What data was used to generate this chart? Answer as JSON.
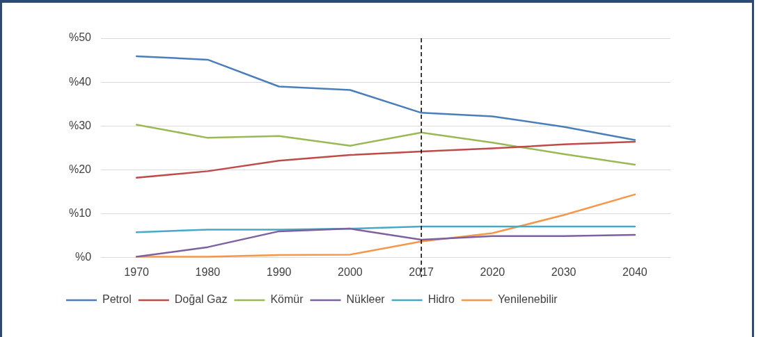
{
  "chart_data": {
    "type": "line",
    "categories": [
      "1970",
      "1980",
      "1990",
      "2000",
      "2017",
      "2020",
      "2030",
      "2040"
    ],
    "series": [
      {
        "name": "Petrol",
        "color": "#4a7ebb",
        "values": [
          45.9,
          45.1,
          39.0,
          38.2,
          33.0,
          32.2,
          29.8,
          26.8
        ]
      },
      {
        "name": "Doğal Gaz",
        "color": "#be4b48",
        "values": [
          18.2,
          19.7,
          22.1,
          23.4,
          24.2,
          24.9,
          25.8,
          26.4
        ]
      },
      {
        "name": "Kömür",
        "color": "#98b954",
        "values": [
          30.3,
          27.3,
          27.7,
          25.5,
          28.5,
          26.2,
          23.6,
          21.2
        ]
      },
      {
        "name": "Nükleer",
        "color": "#7d60a0",
        "values": [
          0.2,
          2.4,
          6.0,
          6.6,
          4.1,
          4.9,
          4.9,
          5.2
        ]
      },
      {
        "name": "Hidro",
        "color": "#46aac5",
        "values": [
          5.8,
          6.4,
          6.4,
          6.6,
          7.1,
          7.1,
          7.1,
          7.1
        ]
      },
      {
        "name": "Yenilenebilir",
        "color": "#f79646",
        "values": [
          0.2,
          0.2,
          0.6,
          0.7,
          3.7,
          5.6,
          9.7,
          14.4
        ]
      }
    ],
    "ylim": [
      0,
      50
    ],
    "yticks": [
      {
        "value": 0,
        "label": "%0"
      },
      {
        "value": 10,
        "label": "%10"
      },
      {
        "value": 20,
        "label": "%20"
      },
      {
        "value": 30,
        "label": "%30"
      },
      {
        "value": 40,
        "label": "%40"
      },
      {
        "value": 50,
        "label": "%50"
      }
    ],
    "ref_lines": [
      {
        "axis": "x",
        "value": "2017",
        "color": "#000000",
        "line_style": "dashed"
      }
    ],
    "grid": "y",
    "legend": "bottom",
    "marker": "none",
    "line_style": "solid"
  }
}
